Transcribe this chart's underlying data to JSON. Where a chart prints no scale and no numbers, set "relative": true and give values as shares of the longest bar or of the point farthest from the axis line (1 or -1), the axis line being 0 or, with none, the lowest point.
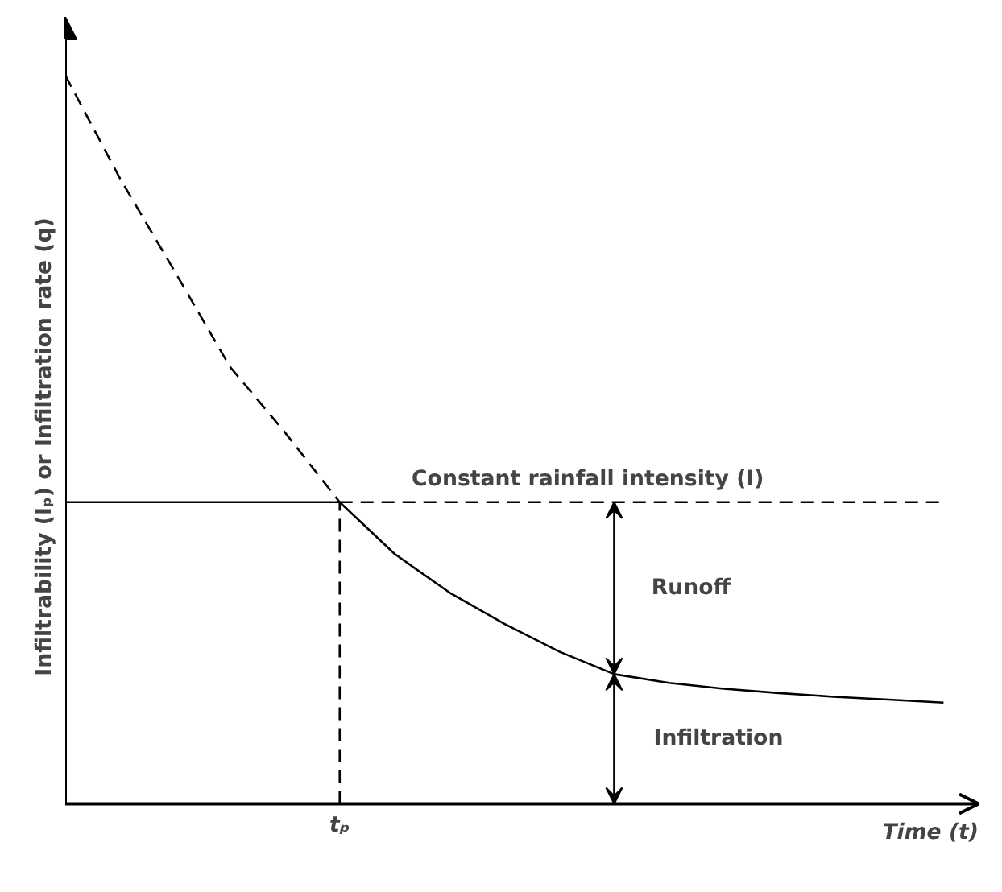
{
  "chart_data": {
    "type": "line",
    "relative": true,
    "xlabel": "Time (t)",
    "ylabel": "Infiltrability (Iₚ) or Infiltration rate (q)",
    "grid": false,
    "marker": "none",
    "categories": [
      null,
      null,
      null,
      null,
      null,
      null,
      null,
      null,
      null,
      null,
      null,
      null,
      null,
      null,
      null,
      null,
      null
    ],
    "series": [
      {
        "color": "#000000",
        "line_style": "dashed",
        "values": [
          1,
          0.858,
          0.73,
          0.6,
          0.51,
          0.414,
          null,
          null,
          null,
          null,
          null,
          null,
          null,
          null,
          null,
          null,
          null
        ]
      },
      {
        "color": "#000000",
        "line_style": "solid",
        "values": [
          null,
          null,
          null,
          null,
          null,
          0.414,
          0.343,
          0.29,
          0.247,
          0.209,
          0.178,
          0.166,
          0.158,
          0.152,
          0.147,
          0.143,
          0.139
        ]
      },
      {
        "color": "#000000",
        "line_style": "solid",
        "values": [
          0.414,
          0.414,
          0.414,
          0.414,
          0.414,
          0.414,
          null,
          null,
          null,
          null,
          null,
          null,
          null,
          null,
          null,
          null,
          null
        ]
      },
      {
        "color": "#000000",
        "line_style": "dashed",
        "values": [
          null,
          null,
          null,
          null,
          null,
          0.414,
          0.414,
          0.414,
          0.414,
          0.414,
          0.414,
          0.414,
          0.414,
          0.414,
          0.414,
          0.414,
          0.414
        ]
      }
    ],
    "annotations": [
      "Constant rainfall intensity (I)",
      "Runoff",
      "Infiltration",
      "tₚ"
    ]
  }
}
